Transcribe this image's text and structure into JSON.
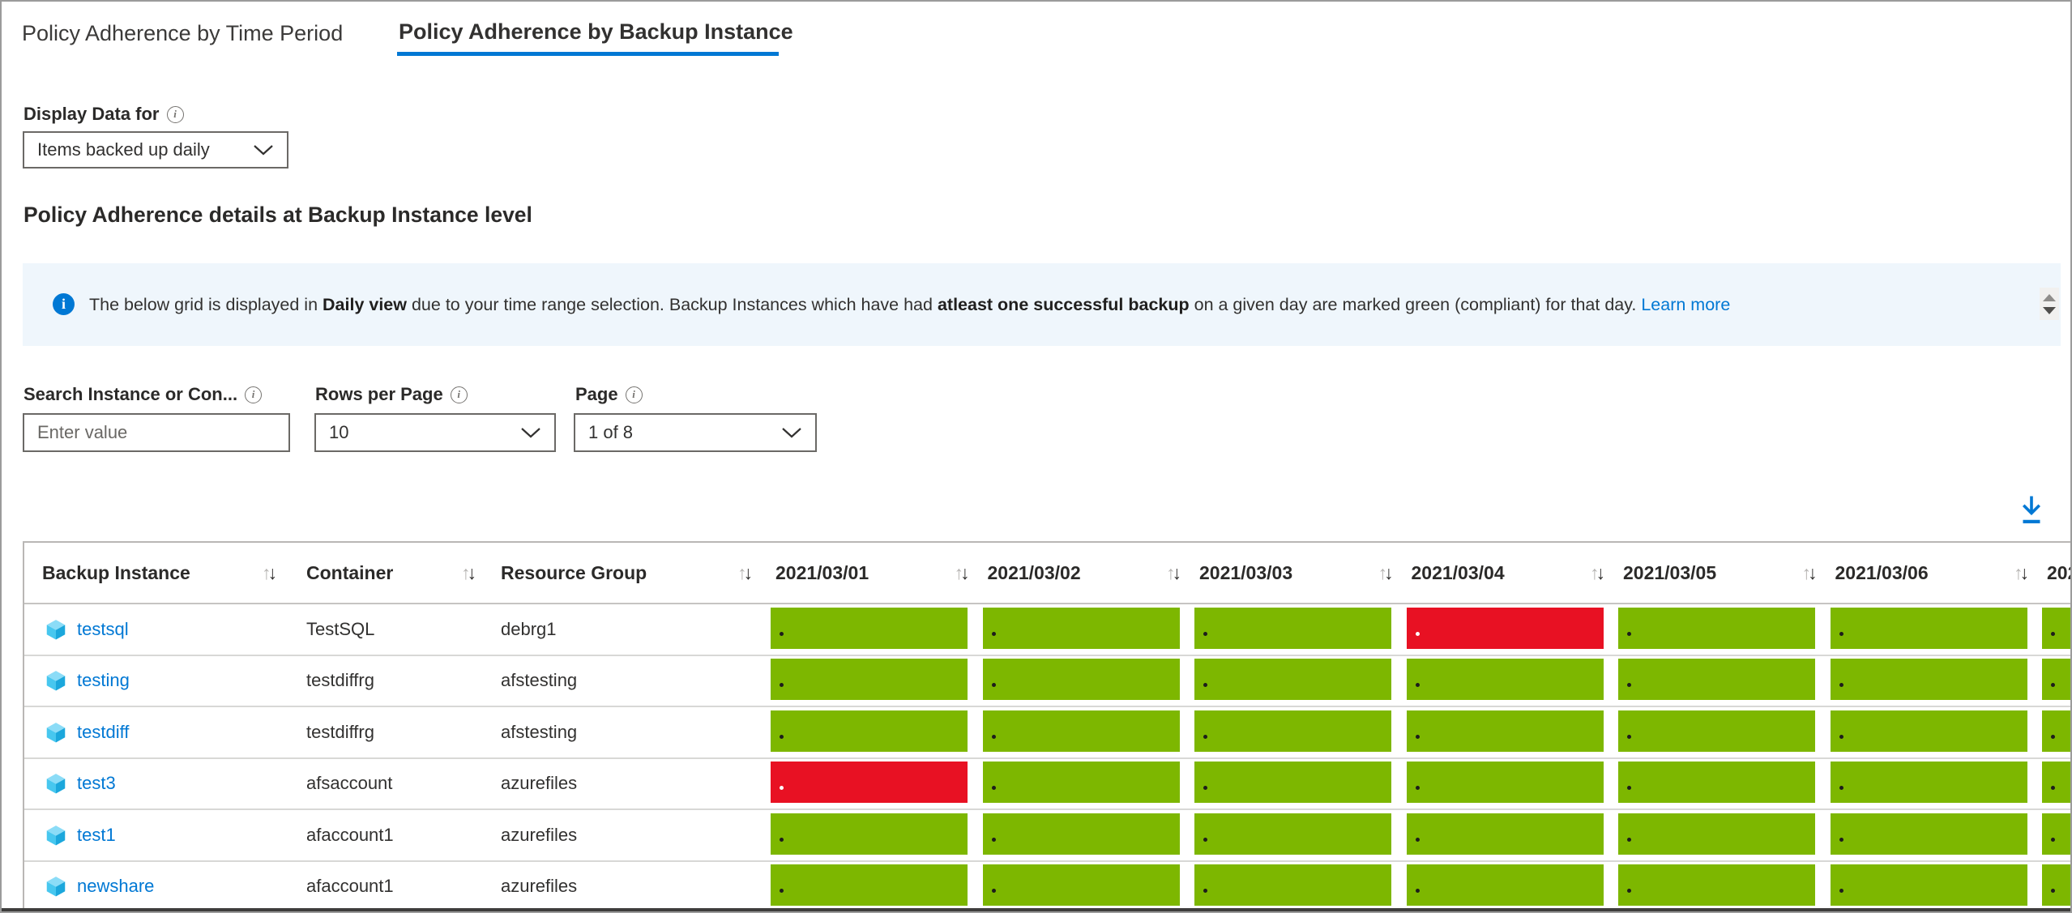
{
  "tabs": [
    {
      "label": "Policy Adherence by Time Period",
      "active": false
    },
    {
      "label": "Policy Adherence by Backup Instance",
      "active": true
    }
  ],
  "display_data_for": {
    "label": "Display Data for",
    "value": "Items backed up daily"
  },
  "section_title": "Policy Adherence details at Backup Instance level",
  "info_banner": {
    "text_parts": [
      {
        "text": "The below grid is displayed in ",
        "bold": false
      },
      {
        "text": "Daily view",
        "bold": true
      },
      {
        "text": " due to your time range selection. Backup Instances which have had ",
        "bold": false
      },
      {
        "text": "atleast one successful backup",
        "bold": true
      },
      {
        "text": " on a given day are marked green (compliant) for that day. ",
        "bold": false
      }
    ],
    "link": "Learn more"
  },
  "filters": {
    "search": {
      "label": "Search Instance or Con...",
      "placeholder": "Enter value"
    },
    "rows_per_page": {
      "label": "Rows per Page",
      "value": "10"
    },
    "page": {
      "label": "Page",
      "value": "1 of 8"
    }
  },
  "table": {
    "text_columns": [
      "Backup Instance",
      "Container",
      "Resource Group"
    ],
    "date_columns": [
      "2021/03/01",
      "2021/03/02",
      "2021/03/03",
      "2021/03/04",
      "2021/03/05",
      "2021/03/06",
      "202"
    ],
    "rows": [
      {
        "instance": "testsql",
        "container": "TestSQL",
        "resource_group": "debrg1",
        "days": [
          "green",
          "green",
          "green",
          "red",
          "green",
          "green",
          "green"
        ]
      },
      {
        "instance": "testing",
        "container": "testdiffrg",
        "resource_group": "afstesting",
        "days": [
          "green",
          "green",
          "green",
          "green",
          "green",
          "green",
          "green"
        ]
      },
      {
        "instance": "testdiff",
        "container": "testdiffrg",
        "resource_group": "afstesting",
        "days": [
          "green",
          "green",
          "green",
          "green",
          "green",
          "green",
          "green"
        ]
      },
      {
        "instance": "test3",
        "container": "afsaccount",
        "resource_group": "azurefiles",
        "days": [
          "red",
          "green",
          "green",
          "green",
          "green",
          "green",
          "green"
        ]
      },
      {
        "instance": "test1",
        "container": "afaccount1",
        "resource_group": "azurefiles",
        "days": [
          "green",
          "green",
          "green",
          "green",
          "green",
          "green",
          "green"
        ]
      },
      {
        "instance": "newshare",
        "container": "afaccount1",
        "resource_group": "azurefiles",
        "days": [
          "green",
          "green",
          "green",
          "green",
          "green",
          "green",
          "green"
        ]
      }
    ]
  },
  "colors": {
    "accent": "#0078d4",
    "compliant_green": "#7db700",
    "noncompliant_red": "#e81123",
    "banner_bg": "#eff6fc",
    "text": "#323130"
  }
}
